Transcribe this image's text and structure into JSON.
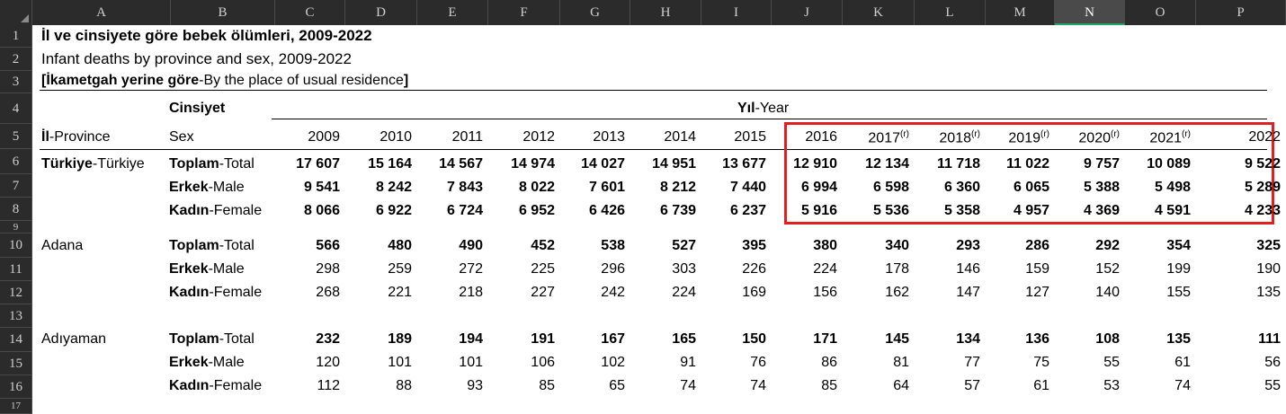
{
  "columns": [
    "A",
    "B",
    "C",
    "D",
    "E",
    "F",
    "G",
    "H",
    "I",
    "J",
    "K",
    "L",
    "M",
    "N",
    "O",
    "P"
  ],
  "selected_column": "N",
  "row_numbers": [
    "1",
    "2",
    "3",
    "4",
    "5",
    "6",
    "7",
    "8",
    "9",
    "10",
    "11",
    "12",
    "13",
    "14",
    "15",
    "16",
    "17"
  ],
  "title_tr": "İl ve cinsiyete göre bebek ölümleri, 2009-2022",
  "title_en": "Infant deaths by province and sex, 2009-2022",
  "residence": {
    "open_bracket": "[",
    "label_tr": "İkametgah yerine göre",
    "label_en": "-By the place of usual residence",
    "close_bracket": "]"
  },
  "headers": {
    "cinsiyet": "Cinsiyet",
    "year_tr": "Yıl",
    "year_en": "-Year",
    "province_tr": "İl",
    "province_en": "-Province",
    "sex": "Sex"
  },
  "years": [
    {
      "y": "2009",
      "sup": ""
    },
    {
      "y": "2010",
      "sup": ""
    },
    {
      "y": "2011",
      "sup": ""
    },
    {
      "y": "2012",
      "sup": ""
    },
    {
      "y": "2013",
      "sup": ""
    },
    {
      "y": "2014",
      "sup": ""
    },
    {
      "y": "2015",
      "sup": ""
    },
    {
      "y": "2016",
      "sup": ""
    },
    {
      "y": "2017",
      "sup": "(r)"
    },
    {
      "y": "2018",
      "sup": "(r)"
    },
    {
      "y": "2019",
      "sup": "(r)"
    },
    {
      "y": "2020",
      "sup": "(r)"
    },
    {
      "y": "2021",
      "sup": "(r)"
    },
    {
      "y": "2022",
      "sup": ""
    }
  ],
  "sex_labels": [
    {
      "tr": "Toplam",
      "en": "-Total"
    },
    {
      "tr": "Erkek",
      "en": "-Male"
    },
    {
      "tr": "Kadın",
      "en": "-Female"
    }
  ],
  "provinces": [
    {
      "name_tr": "Türkiye",
      "name_en": "-Türkiye",
      "bold": true,
      "rows": [
        [
          "17 607",
          "15 164",
          "14 567",
          "14 974",
          "14 027",
          "14 951",
          "13 677",
          "12 910",
          "12 134",
          "11 718",
          "11 022",
          "9 757",
          "10 089",
          "9 522"
        ],
        [
          "9 541",
          "8 242",
          "7 843",
          "8 022",
          "7 601",
          "8 212",
          "7 440",
          "6 994",
          "6 598",
          "6 360",
          "6 065",
          "5 388",
          "5 498",
          "5 289"
        ],
        [
          "8 066",
          "6 922",
          "6 724",
          "6 952",
          "6 426",
          "6 739",
          "6 237",
          "5 916",
          "5 536",
          "5 358",
          "4 957",
          "4 369",
          "4 591",
          "4 233"
        ]
      ]
    },
    {
      "name_tr": "Adana",
      "name_en": "",
      "bold": false,
      "rows": [
        [
          "566",
          "480",
          "490",
          "452",
          "538",
          "527",
          "395",
          "380",
          "340",
          "293",
          "286",
          "292",
          "354",
          "325"
        ],
        [
          "298",
          "259",
          "272",
          "225",
          "296",
          "303",
          "226",
          "224",
          "178",
          "146",
          "159",
          "152",
          "199",
          "190"
        ],
        [
          "268",
          "221",
          "218",
          "227",
          "242",
          "224",
          "169",
          "156",
          "162",
          "147",
          "127",
          "140",
          "155",
          "135"
        ]
      ]
    },
    {
      "name_tr": "Adıyaman",
      "name_en": "",
      "bold": false,
      "rows": [
        [
          "232",
          "189",
          "194",
          "191",
          "167",
          "165",
          "150",
          "171",
          "145",
          "134",
          "136",
          "108",
          "135",
          "111"
        ],
        [
          "120",
          "101",
          "101",
          "106",
          "102",
          "91",
          "76",
          "86",
          "81",
          "77",
          "75",
          "55",
          "61",
          "56"
        ],
        [
          "112",
          "88",
          "93",
          "85",
          "65",
          "74",
          "74",
          "85",
          "64",
          "57",
          "61",
          "53",
          "74",
          "55"
        ]
      ]
    }
  ]
}
